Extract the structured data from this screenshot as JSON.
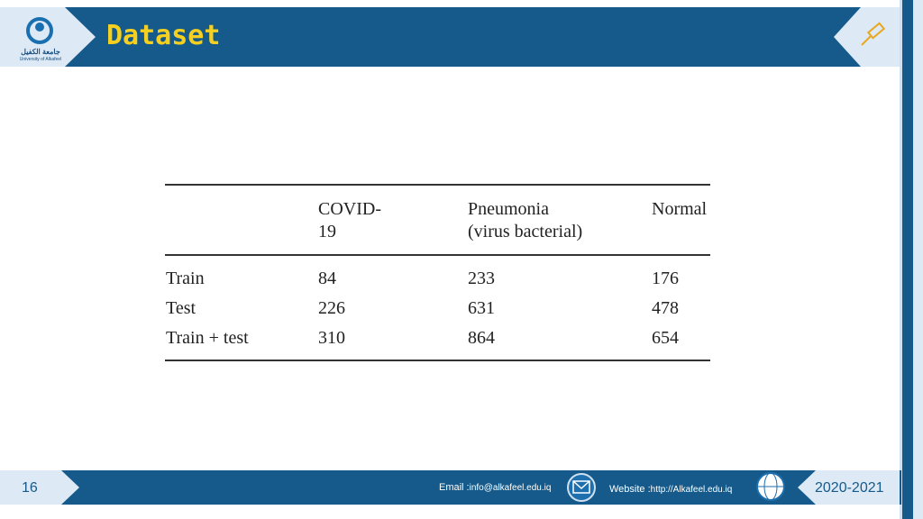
{
  "header": {
    "title": "Dataset",
    "logo_arabic": "جامعة الكفيل",
    "logo_english": "University of Alkafeel"
  },
  "table": {
    "columns": [
      [],
      [
        "COVID-",
        "19"
      ],
      [
        "Pneumonia",
        "(virus bacterial)"
      ],
      [
        "Normal"
      ]
    ],
    "rows": [
      [
        "Train",
        84,
        233,
        176
      ],
      [
        "Test",
        226,
        631,
        478
      ],
      [
        "Train + test",
        310,
        864,
        654
      ]
    ]
  },
  "footer": {
    "page": "16",
    "email_label": "Email :",
    "email": "info@alkafeel.edu.iq",
    "website_label": "Website :",
    "website": "http://Alkafeel.edu.iq",
    "years": "2020-2021"
  }
}
